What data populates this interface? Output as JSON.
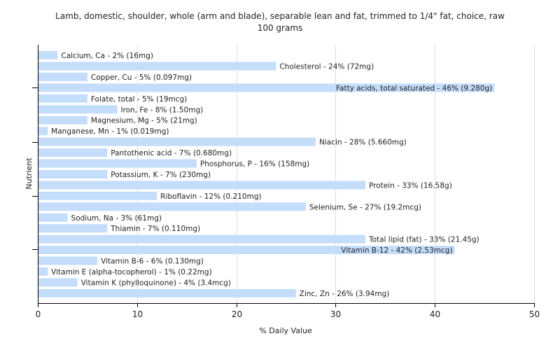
{
  "chart_data": {
    "type": "bar",
    "orientation": "horizontal",
    "title_line1": "Lamb, domestic, shoulder, whole (arm and blade), separable lean and fat, trimmed to 1/4\" fat, choice, raw",
    "title_line2": "100 grams",
    "xlabel": "% Daily Value",
    "ylabel": "Nutrient",
    "xlim": [
      0,
      50
    ],
    "xticks": [
      0,
      10,
      20,
      30,
      40,
      50
    ],
    "grid": true,
    "bar_color": "#c4ddfb",
    "categories": [
      "Calcium, Ca",
      "Cholesterol",
      "Copper, Cu",
      "Fatty acids, total saturated",
      "Folate, total",
      "Iron, Fe",
      "Magnesium, Mg",
      "Manganese, Mn",
      "Niacin",
      "Pantothenic acid",
      "Phosphorus, P",
      "Potassium, K",
      "Protein",
      "Riboflavin",
      "Selenium, Se",
      "Sodium, Na",
      "Thiamin",
      "Total lipid (fat)",
      "Vitamin B-12",
      "Vitamin B-6",
      "Vitamin E (alpha-tocopherol)",
      "Vitamin K (phylloquinone)",
      "Zinc, Zn"
    ],
    "values": [
      2,
      24,
      5,
      46,
      5,
      8,
      5,
      1,
      28,
      7,
      16,
      7,
      33,
      12,
      27,
      3,
      7,
      33,
      42,
      6,
      1,
      4,
      26
    ],
    "labels": [
      "Calcium, Ca - 2% (16mg)",
      "Cholesterol - 24% (72mg)",
      "Copper, Cu - 5% (0.097mg)",
      "Fatty acids, total saturated - 46% (9.280g)",
      "Folate, total - 5% (19mcg)",
      "Iron, Fe - 8% (1.50mg)",
      "Magnesium, Mg - 5% (21mg)",
      "Manganese, Mn - 1% (0.019mg)",
      "Niacin - 28% (5.660mg)",
      "Pantothenic acid - 7% (0.680mg)",
      "Phosphorus, P - 16% (158mg)",
      "Potassium, K - 7% (230mg)",
      "Protein - 33% (16.58g)",
      "Riboflavin - 12% (0.210mg)",
      "Selenium, Se - 27% (19.2mcg)",
      "Sodium, Na - 3% (61mg)",
      "Thiamin - 7% (0.110mg)",
      "Total lipid (fat) - 33% (21.45g)",
      "Vitamin B-12 - 42% (2.53mcg)",
      "Vitamin B-6 - 6% (0.130mg)",
      "Vitamin E (alpha-tocopherol) - 1% (0.22mg)",
      "Vitamin K (phylloquinone) - 4% (3.4mcg)",
      "Zinc, Zn - 26% (3.94mg)"
    ]
  }
}
